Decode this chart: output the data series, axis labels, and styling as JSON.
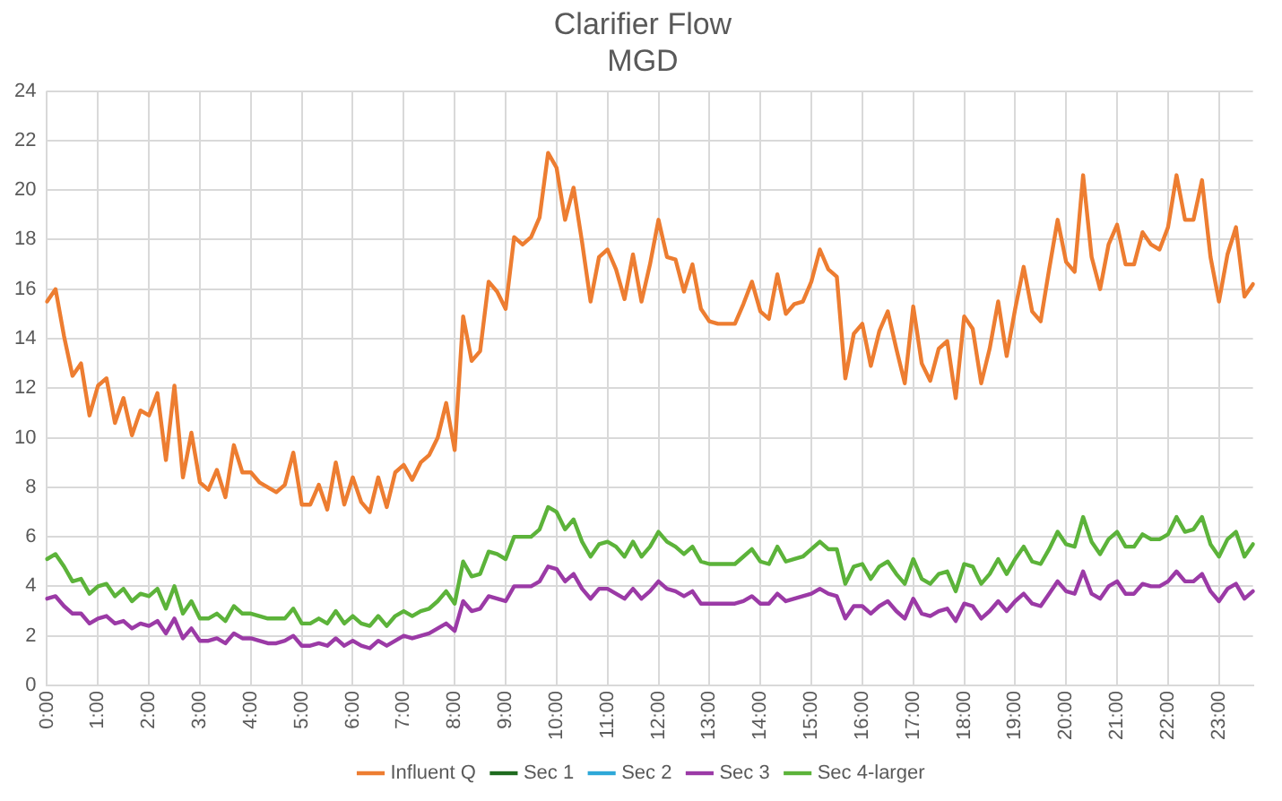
{
  "chart_data": {
    "type": "line",
    "title": "Clarifier Flow",
    "subtitle": "MGD",
    "categories": [
      "0:00",
      null,
      null,
      null,
      null,
      null,
      "1:00",
      null,
      null,
      null,
      null,
      null,
      "2:00",
      null,
      null,
      null,
      null,
      null,
      "3:00",
      null,
      null,
      null,
      null,
      null,
      "4:00",
      null,
      null,
      null,
      null,
      null,
      "5:00",
      null,
      null,
      null,
      null,
      null,
      "6:00",
      null,
      null,
      null,
      null,
      null,
      "7:00",
      null,
      null,
      null,
      null,
      null,
      "8:00",
      null,
      null,
      null,
      null,
      null,
      "9:00",
      null,
      null,
      null,
      null,
      null,
      "10:00",
      null,
      null,
      null,
      null,
      null,
      "11:00",
      null,
      null,
      null,
      null,
      null,
      "12:00",
      null,
      null,
      null,
      null,
      null,
      "13:00",
      null,
      null,
      null,
      null,
      null,
      "14:00",
      null,
      null,
      null,
      null,
      null,
      "15:00",
      null,
      null,
      null,
      null,
      null,
      "16:00",
      null,
      null,
      null,
      null,
      null,
      "17:00",
      null,
      null,
      null,
      null,
      null,
      "18:00",
      null,
      null,
      null,
      null,
      null,
      "19:00",
      null,
      null,
      null,
      null,
      null,
      "20:00",
      null,
      null,
      null,
      null,
      null,
      "21:00",
      null,
      null,
      null,
      null,
      null,
      "22:00",
      null,
      null,
      null,
      null,
      null,
      "23:00",
      null,
      null,
      null,
      null
    ],
    "series": [
      {
        "name": "Influent Q",
        "color": "#ed7d31",
        "values": [
          15.5,
          16.0,
          14.1,
          12.5,
          13.0,
          10.9,
          12.1,
          12.4,
          10.6,
          11.6,
          10.1,
          11.1,
          10.9,
          11.8,
          9.1,
          12.1,
          8.4,
          10.2,
          8.2,
          7.9,
          8.7,
          7.6,
          9.7,
          8.6,
          8.6,
          8.2,
          8.0,
          7.8,
          8.1,
          9.4,
          7.3,
          7.3,
          8.1,
          7.1,
          9.0,
          7.3,
          8.4,
          7.4,
          7.0,
          8.4,
          7.2,
          8.6,
          8.9,
          8.3,
          9.0,
          9.3,
          10.0,
          11.4,
          9.5,
          14.9,
          13.1,
          13.5,
          16.3,
          15.9,
          15.2,
          18.1,
          17.8,
          18.1,
          18.9,
          21.5,
          20.9,
          18.8,
          20.1,
          17.9,
          15.5,
          17.3,
          17.6,
          16.8,
          15.6,
          17.4,
          15.5,
          17.0,
          18.8,
          17.3,
          17.2,
          15.9,
          17.0,
          15.2,
          14.7,
          14.6,
          14.6,
          14.6,
          15.4,
          16.3,
          15.1,
          14.8,
          16.6,
          15.0,
          15.4,
          15.5,
          16.3,
          17.6,
          16.8,
          16.5,
          12.4,
          14.2,
          14.6,
          12.9,
          14.3,
          15.1,
          13.6,
          12.2,
          15.3,
          13.0,
          12.3,
          13.6,
          13.9,
          11.6,
          14.9,
          14.4,
          12.2,
          13.6,
          15.5,
          13.3,
          15.2,
          16.9,
          15.1,
          14.7,
          16.8,
          18.8,
          17.1,
          16.7,
          20.6,
          17.3,
          16.0,
          17.8,
          18.6,
          17.0,
          17.0,
          18.3,
          17.8,
          17.6,
          18.5,
          20.6,
          18.8,
          18.8,
          20.4,
          17.3,
          15.5,
          17.4,
          18.5,
          15.7,
          16.2
        ]
      },
      {
        "name": "Sec 1",
        "color": "#1f6b1f",
        "values": [
          null,
          null,
          null,
          null,
          null,
          null,
          null,
          null,
          null,
          null,
          null,
          null,
          null,
          null,
          null,
          null,
          null,
          null,
          null,
          null,
          null,
          null,
          null,
          null,
          null,
          null,
          null,
          null,
          null,
          null,
          null,
          null,
          null,
          null,
          null,
          null,
          null,
          null,
          null,
          null,
          null,
          null,
          null,
          null,
          null,
          null,
          null,
          null,
          null,
          null,
          null,
          null,
          null,
          null,
          null,
          null,
          null,
          null,
          null,
          null,
          null,
          null,
          null,
          null,
          null,
          null,
          null,
          null,
          null,
          null,
          null,
          null,
          null,
          null,
          null,
          null,
          null,
          null,
          null,
          null,
          null,
          null,
          null,
          null,
          null,
          null,
          null,
          null,
          null,
          null,
          null,
          null,
          null,
          null,
          null,
          null,
          null,
          null,
          null,
          null,
          null,
          null,
          null,
          null,
          null,
          null,
          null,
          null,
          null,
          null,
          null,
          null,
          null,
          null,
          null,
          null,
          null,
          null,
          null,
          null,
          null,
          null,
          null,
          null,
          null,
          null,
          null,
          null,
          null,
          null,
          null,
          null,
          null,
          null,
          null,
          null,
          null,
          null,
          null,
          null,
          null,
          null,
          null
        ]
      },
      {
        "name": "Sec 2",
        "color": "#2ea8d8",
        "values": [
          null,
          null,
          null,
          null,
          null,
          null,
          null,
          null,
          null,
          null,
          null,
          null,
          null,
          null,
          null,
          null,
          null,
          null,
          null,
          null,
          null,
          null,
          null,
          null,
          null,
          null,
          null,
          null,
          null,
          null,
          null,
          null,
          null,
          null,
          null,
          null,
          null,
          null,
          null,
          null,
          null,
          null,
          null,
          null,
          null,
          null,
          null,
          null,
          null,
          null,
          null,
          null,
          null,
          null,
          null,
          null,
          null,
          null,
          null,
          null,
          null,
          null,
          null,
          null,
          null,
          null,
          null,
          null,
          null,
          null,
          null,
          null,
          null,
          null,
          null,
          null,
          null,
          null,
          null,
          null,
          null,
          null,
          null,
          null,
          null,
          null,
          null,
          null,
          null,
          null,
          null,
          null,
          null,
          null,
          null,
          null,
          null,
          null,
          null,
          null,
          null,
          null,
          null,
          null,
          null,
          null,
          null,
          null,
          null,
          null,
          null,
          null,
          null,
          null,
          null,
          null,
          null,
          null,
          null,
          null,
          null,
          null,
          null,
          null,
          null,
          null,
          null,
          null,
          null,
          null,
          null,
          null,
          null,
          null,
          null,
          null,
          null,
          null,
          null,
          null,
          null,
          null,
          null
        ]
      },
      {
        "name": "Sec 3",
        "color": "#9b3aa6",
        "values": [
          3.5,
          3.6,
          3.2,
          2.9,
          2.9,
          2.5,
          2.7,
          2.8,
          2.5,
          2.6,
          2.3,
          2.5,
          2.4,
          2.6,
          2.1,
          2.7,
          1.9,
          2.3,
          1.8,
          1.8,
          1.9,
          1.7,
          2.1,
          1.9,
          1.9,
          1.8,
          1.7,
          1.7,
          1.8,
          2.0,
          1.6,
          1.6,
          1.7,
          1.6,
          1.9,
          1.6,
          1.8,
          1.6,
          1.5,
          1.8,
          1.6,
          1.8,
          2.0,
          1.9,
          2.0,
          2.1,
          2.3,
          2.5,
          2.2,
          3.4,
          3.0,
          3.1,
          3.6,
          3.5,
          3.4,
          4.0,
          4.0,
          4.0,
          4.2,
          4.8,
          4.7,
          4.2,
          4.5,
          3.9,
          3.5,
          3.9,
          3.9,
          3.7,
          3.5,
          3.9,
          3.5,
          3.8,
          4.2,
          3.9,
          3.8,
          3.6,
          3.8,
          3.3,
          3.3,
          3.3,
          3.3,
          3.3,
          3.4,
          3.6,
          3.3,
          3.3,
          3.7,
          3.4,
          3.5,
          3.6,
          3.7,
          3.9,
          3.7,
          3.6,
          2.7,
          3.2,
          3.2,
          2.9,
          3.2,
          3.4,
          3.0,
          2.7,
          3.5,
          2.9,
          2.8,
          3.0,
          3.1,
          2.6,
          3.3,
          3.2,
          2.7,
          3.0,
          3.4,
          3.0,
          3.4,
          3.7,
          3.3,
          3.2,
          3.7,
          4.2,
          3.8,
          3.7,
          4.6,
          3.7,
          3.5,
          4.0,
          4.2,
          3.7,
          3.7,
          4.1,
          4.0,
          4.0,
          4.2,
          4.6,
          4.2,
          4.2,
          4.5,
          3.8,
          3.4,
          3.9,
          4.1,
          3.5,
          3.8
        ]
      },
      {
        "name": "Sec 4-larger",
        "color": "#5cb33a",
        "values": [
          5.1,
          5.3,
          4.8,
          4.2,
          4.3,
          3.7,
          4.0,
          4.1,
          3.6,
          3.9,
          3.4,
          3.7,
          3.6,
          3.9,
          3.1,
          4.0,
          2.9,
          3.4,
          2.7,
          2.7,
          2.9,
          2.6,
          3.2,
          2.9,
          2.9,
          2.8,
          2.7,
          2.7,
          2.7,
          3.1,
          2.5,
          2.5,
          2.7,
          2.5,
          3.0,
          2.5,
          2.8,
          2.5,
          2.4,
          2.8,
          2.4,
          2.8,
          3.0,
          2.8,
          3.0,
          3.1,
          3.4,
          3.8,
          3.3,
          5.0,
          4.4,
          4.5,
          5.4,
          5.3,
          5.1,
          6.0,
          6.0,
          6.0,
          6.3,
          7.2,
          7.0,
          6.3,
          6.7,
          5.8,
          5.2,
          5.7,
          5.8,
          5.6,
          5.2,
          5.8,
          5.2,
          5.6,
          6.2,
          5.8,
          5.6,
          5.3,
          5.6,
          5.0,
          4.9,
          4.9,
          4.9,
          4.9,
          5.2,
          5.5,
          5.0,
          4.9,
          5.6,
          5.0,
          5.1,
          5.2,
          5.5,
          5.8,
          5.5,
          5.5,
          4.1,
          4.8,
          4.9,
          4.3,
          4.8,
          5.0,
          4.5,
          4.1,
          5.1,
          4.3,
          4.1,
          4.5,
          4.6,
          3.8,
          4.9,
          4.8,
          4.1,
          4.5,
          5.1,
          4.5,
          5.1,
          5.6,
          5.0,
          4.9,
          5.5,
          6.2,
          5.7,
          5.6,
          6.8,
          5.8,
          5.3,
          5.9,
          6.2,
          5.6,
          5.6,
          6.1,
          5.9,
          5.9,
          6.1,
          6.8,
          6.2,
          6.3,
          6.8,
          5.7,
          5.2,
          5.9,
          6.2,
          5.2,
          5.7
        ]
      }
    ],
    "ylim": [
      0,
      24
    ],
    "yticks": [
      0,
      2,
      4,
      6,
      8,
      10,
      12,
      14,
      16,
      18,
      20,
      22,
      24
    ],
    "grid": true,
    "legend": "bottom",
    "marker": "none",
    "line_style": "solid"
  }
}
